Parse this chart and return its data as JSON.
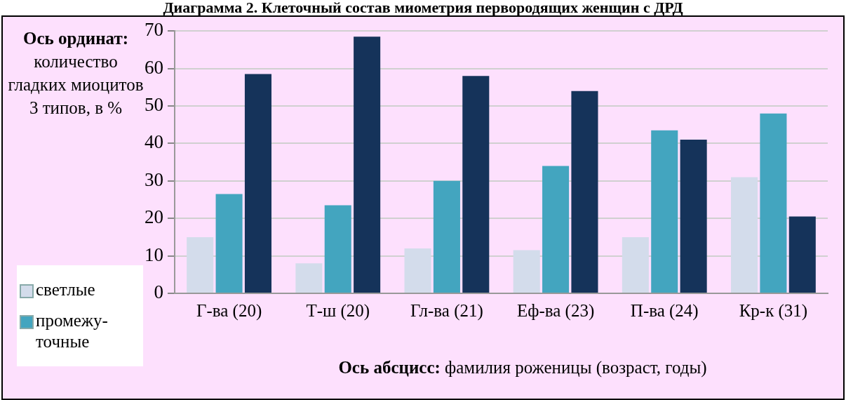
{
  "chart_data": {
    "type": "bar",
    "title": "Диаграмма 2. Клеточный состав миометрия первородящих женщин с ДРД",
    "ylabel": "Ось ординат: количество гладких миоцитов 3 типов, в %",
    "xlabel": "Ось абсцисс: фамилия роженицы (возраст, годы)",
    "categories": [
      "Г-ва (20)",
      "Т-ш (20)",
      "Гл-ва (21)",
      "Еф-ва (23)",
      "П-ва (24)",
      "Кр-к (31)"
    ],
    "series": [
      {
        "name": "светлые",
        "color": "#d3dceb",
        "values": [
          15,
          8,
          12,
          11.5,
          15,
          31
        ]
      },
      {
        "name": "промежу-точные",
        "color": "#43a5bf",
        "values": [
          26.5,
          23.5,
          30,
          34,
          43.5,
          48
        ]
      },
      {
        "color": "#15335a",
        "values": [
          58.5,
          68.5,
          58,
          54,
          41,
          20.5
        ]
      }
    ],
    "ylim": [
      0,
      70
    ],
    "yticks": [
      0,
      10,
      20,
      30,
      40,
      50,
      60,
      70
    ],
    "grid": "y",
    "legend": "left"
  }
}
